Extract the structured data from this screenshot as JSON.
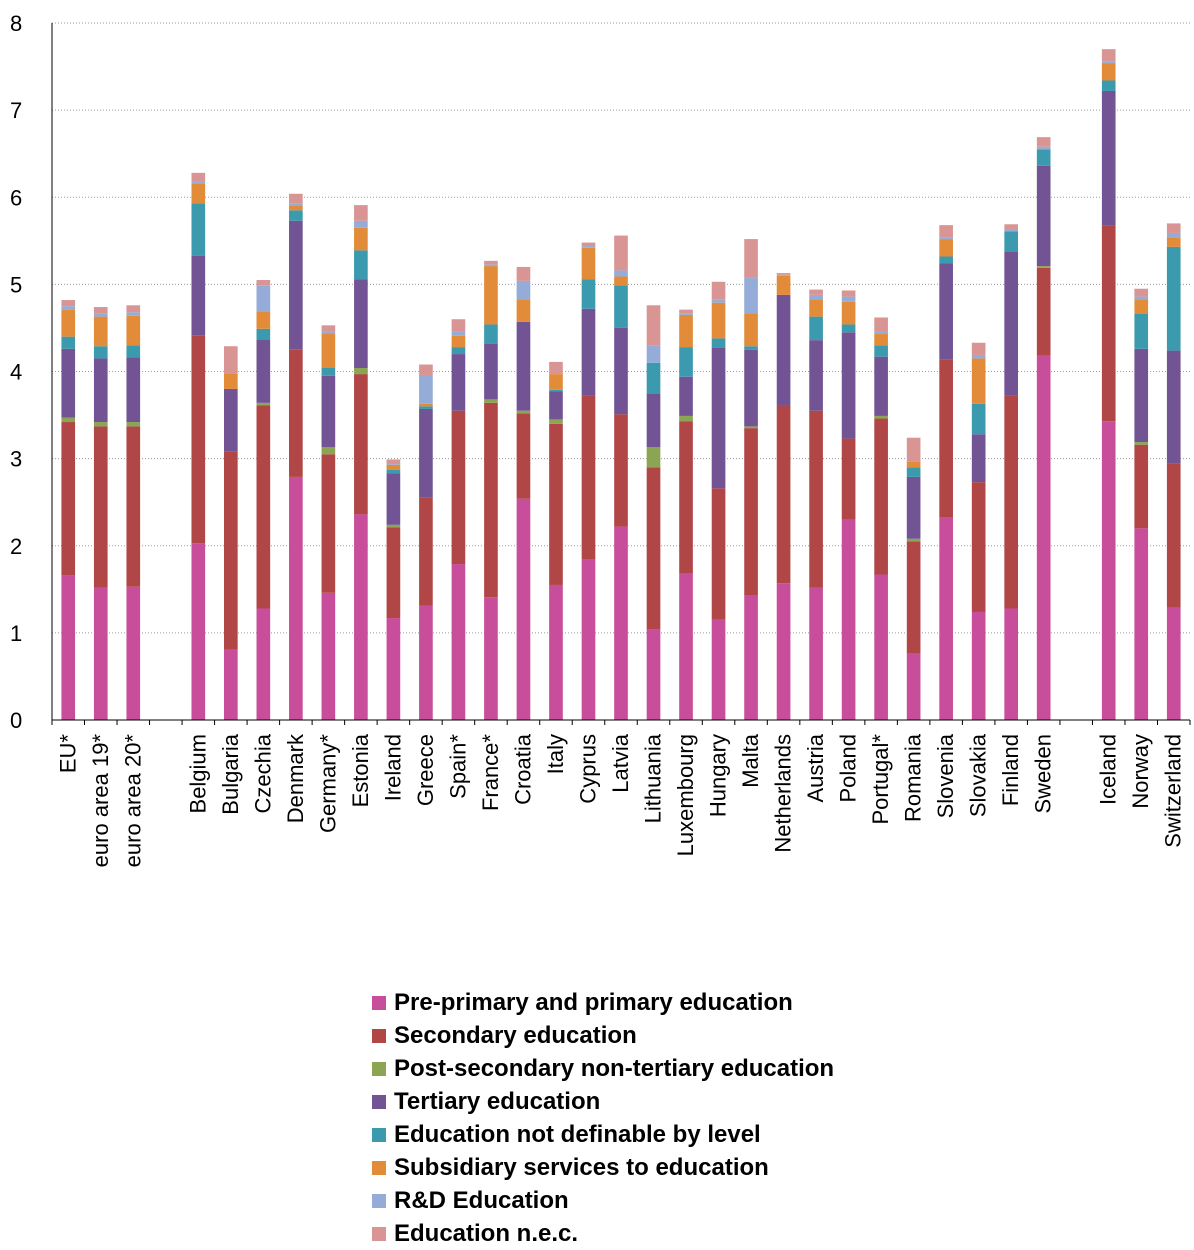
{
  "chart_data": {
    "type": "bar",
    "stacked": true,
    "title": "",
    "xlabel": "",
    "ylabel": "",
    "ylim": [
      0,
      8
    ],
    "yticks": [
      0,
      1,
      2,
      3,
      4,
      5,
      6,
      7,
      8
    ],
    "grid": "horizontal dotted",
    "legend_position": "bottom",
    "groups": [
      [
        "EU*",
        "euro area 19*",
        "euro area 20*"
      ],
      [
        "Belgium",
        "Bulgaria",
        "Czechia",
        "Denmark",
        "Germany*",
        "Estonia",
        "Ireland",
        "Greece",
        "Spain*",
        "France*",
        "Croatia",
        "Italy",
        "Cyprus",
        "Latvia",
        "Lithuania",
        "Luxembourg",
        "Hungary",
        "Malta",
        "Netherlands",
        "Austria",
        "Poland",
        "Portugal*",
        "Romania",
        "Slovenia",
        "Slovakia",
        "Finland",
        "Sweden"
      ],
      [
        "Iceland",
        "Norway",
        "Switzerland"
      ]
    ],
    "categories": [
      "EU*",
      "euro area 19*",
      "euro area 20*",
      "Belgium",
      "Bulgaria",
      "Czechia",
      "Denmark",
      "Germany*",
      "Estonia",
      "Ireland",
      "Greece",
      "Spain*",
      "France*",
      "Croatia",
      "Italy",
      "Cyprus",
      "Latvia",
      "Lithuania",
      "Luxembourg",
      "Hungary",
      "Malta",
      "Netherlands",
      "Austria",
      "Poland",
      "Portugal*",
      "Romania",
      "Slovenia",
      "Slovakia",
      "Finland",
      "Sweden",
      "Iceland",
      "Norway",
      "Switzerland"
    ],
    "series": [
      {
        "name": "Pre-primary and primary education",
        "color": "#c84d9b",
        "values": [
          1.66,
          1.52,
          1.53,
          2.03,
          0.81,
          1.28,
          2.79,
          1.46,
          2.36,
          1.17,
          1.31,
          1.79,
          1.41,
          2.54,
          1.55,
          1.84,
          2.22,
          1.04,
          1.68,
          1.15,
          1.43,
          1.57,
          1.52,
          2.3,
          1.67,
          0.76,
          2.33,
          1.24,
          1.28,
          4.18,
          3.43,
          2.2,
          1.29
        ]
      },
      {
        "name": "Secondary education",
        "color": "#b04646",
        "values": [
          1.76,
          1.85,
          1.84,
          2.38,
          2.27,
          2.33,
          1.46,
          1.59,
          1.61,
          1.04,
          1.24,
          1.76,
          2.23,
          0.98,
          1.85,
          1.88,
          1.29,
          1.86,
          1.75,
          1.51,
          1.92,
          2.04,
          2.03,
          0.93,
          1.79,
          1.29,
          1.81,
          1.49,
          2.44,
          1.01,
          2.25,
          0.96,
          1.65
        ]
      },
      {
        "name": "Post-secondary non-tertiary education",
        "color": "#8ca553",
        "values": [
          0.05,
          0.05,
          0.05,
          0.0,
          0.0,
          0.03,
          0.0,
          0.08,
          0.07,
          0.03,
          0.0,
          0.0,
          0.04,
          0.03,
          0.05,
          0.0,
          0.0,
          0.23,
          0.06,
          0.0,
          0.02,
          0.0,
          0.0,
          0.0,
          0.03,
          0.03,
          0.0,
          0.0,
          0.0,
          0.02,
          0.0,
          0.03,
          0.0
        ]
      },
      {
        "name": "Tertiary education",
        "color": "#725495",
        "values": [
          0.79,
          0.73,
          0.74,
          0.92,
          0.72,
          0.73,
          1.48,
          0.82,
          1.02,
          0.59,
          1.02,
          0.65,
          0.64,
          1.02,
          0.32,
          1.0,
          0.99,
          0.62,
          0.45,
          1.61,
          0.88,
          1.27,
          0.81,
          1.22,
          0.68,
          0.71,
          1.1,
          0.55,
          1.66,
          1.15,
          1.54,
          1.07,
          1.3
        ]
      },
      {
        "name": "Education not definable by level",
        "color": "#3c9aae",
        "values": [
          0.14,
          0.14,
          0.14,
          0.6,
          0.0,
          0.12,
          0.12,
          0.09,
          0.33,
          0.04,
          0.03,
          0.08,
          0.22,
          0.0,
          0.02,
          0.34,
          0.49,
          0.35,
          0.34,
          0.11,
          0.04,
          0.0,
          0.27,
          0.09,
          0.13,
          0.11,
          0.08,
          0.35,
          0.23,
          0.19,
          0.12,
          0.4,
          1.19
        ]
      },
      {
        "name": "Subsidiary services to education",
        "color": "#e28b39",
        "values": [
          0.31,
          0.34,
          0.34,
          0.23,
          0.18,
          0.2,
          0.05,
          0.4,
          0.26,
          0.06,
          0.03,
          0.13,
          0.67,
          0.26,
          0.18,
          0.36,
          0.1,
          0.0,
          0.37,
          0.41,
          0.37,
          0.22,
          0.2,
          0.26,
          0.13,
          0.07,
          0.2,
          0.52,
          0.0,
          0.0,
          0.2,
          0.17,
          0.11
        ]
      },
      {
        "name": "R&D Education",
        "color": "#94acd7",
        "values": [
          0.04,
          0.04,
          0.04,
          0.02,
          0.0,
          0.3,
          0.03,
          0.02,
          0.08,
          0.02,
          0.33,
          0.05,
          0.02,
          0.21,
          0.0,
          0.02,
          0.07,
          0.2,
          0.02,
          0.04,
          0.42,
          0.01,
          0.05,
          0.06,
          0.03,
          0.0,
          0.02,
          0.04,
          0.02,
          0.03,
          0.02,
          0.03,
          0.05
        ]
      },
      {
        "name": "Education n.e.c.",
        "color": "#d99594",
        "values": [
          0.07,
          0.07,
          0.08,
          0.1,
          0.31,
          0.06,
          0.11,
          0.07,
          0.18,
          0.04,
          0.12,
          0.14,
          0.04,
          0.16,
          0.14,
          0.04,
          0.4,
          0.46,
          0.04,
          0.2,
          0.44,
          0.02,
          0.06,
          0.07,
          0.16,
          0.27,
          0.14,
          0.14,
          0.06,
          0.11,
          0.14,
          0.09,
          0.11
        ]
      }
    ]
  }
}
